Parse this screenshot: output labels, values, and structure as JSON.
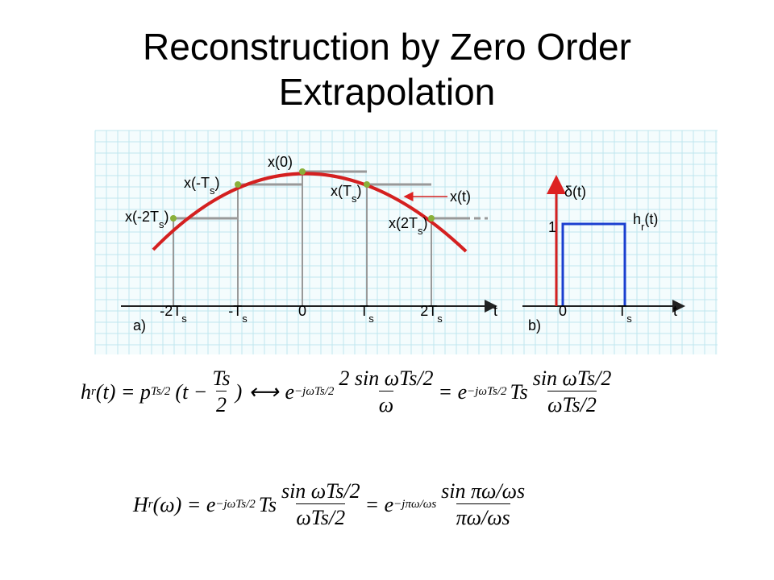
{
  "title": [
    "Reconstruction by Zero Order",
    "Extrapolation"
  ],
  "diagram_a": {
    "sample_labels": [
      [
        "x(-2T",
        "s",
        ")"
      ],
      [
        "x(-T",
        "s",
        ")"
      ],
      [
        "x(0)"
      ],
      [
        "x(T",
        "s",
        ")"
      ],
      [
        "x(2T",
        "s",
        ")"
      ]
    ],
    "curve_label": "x(t)",
    "ticks": [
      [
        "-2T",
        "s"
      ],
      [
        "-T",
        "s"
      ],
      [
        "0"
      ],
      [
        "T",
        "s"
      ],
      [
        "2T",
        "s"
      ]
    ],
    "axis_label": "t",
    "panel": "a)"
  },
  "diagram_b": {
    "impulse_label": "δ(t)",
    "height_label": "1",
    "response_label": [
      "h",
      "r",
      "(t)"
    ],
    "ticks": [
      [
        "0"
      ],
      [
        "T",
        "s"
      ]
    ],
    "axis_label": "t",
    "panel": "b)"
  },
  "equation_1": [
    "h",
    "r",
    "(t) = p",
    "Ts/2",
    "(t −",
    "Ts",
    "2",
    ")",
    "⟷",
    "e",
    "−jωTs/2",
    "2 sin ωTs/2",
    "ω",
    "= e",
    "−jωTs/2",
    "Ts",
    "sin ωTs/2",
    "ωTs/2"
  ],
  "equation_2": [
    "H",
    "r",
    "(ω) = e",
    "−jωTs/2",
    "Ts",
    "sin ωTs/2",
    "ωTs/2",
    "= e",
    "−jπω/ωs",
    "sin πω/ωs",
    "πω/ωs"
  ]
}
